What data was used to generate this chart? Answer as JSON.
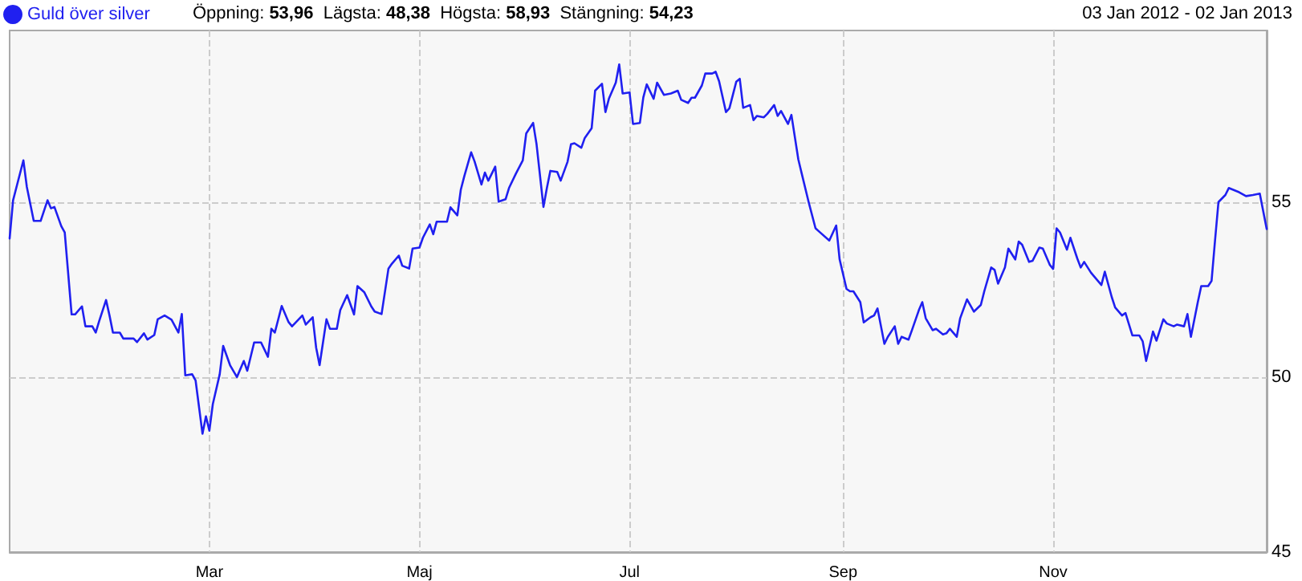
{
  "chart_data": {
    "type": "line",
    "legend": "top left",
    "grid": true,
    "marker": "none",
    "line_style": "solid",
    "annotations": [
      "Öppning: 53,96",
      "Lägsta: 48,38",
      "Högsta: 58,93",
      "Stängning: 54,23",
      "03 Jan 2012 - 02 Jan 2013"
    ],
    "x": [
      "2012-01-03",
      "2012-01-04",
      "2012-01-05",
      "2012-01-07",
      "2012-01-08",
      "2012-01-10",
      "2012-01-12",
      "2012-01-14",
      "2012-01-15",
      "2012-01-16",
      "2012-01-18",
      "2012-01-19",
      "2012-01-21",
      "2012-01-22",
      "2012-01-24",
      "2012-01-25",
      "2012-01-27",
      "2012-01-28",
      "2012-01-29",
      "2012-01-31",
      "2012-02-01",
      "2012-02-02",
      "2012-02-04",
      "2012-02-05",
      "2012-02-08",
      "2012-02-09",
      "2012-02-11",
      "2012-02-12",
      "2012-02-14",
      "2012-02-15",
      "2012-02-17",
      "2012-02-19",
      "2012-02-21",
      "2012-02-22",
      "2012-02-23",
      "2012-02-25",
      "2012-02-26",
      "2012-02-28",
      "2012-02-29",
      "2012-03-01",
      "2012-03-02",
      "2012-03-04",
      "2012-03-05",
      "2012-03-07",
      "2012-03-09",
      "2012-03-11",
      "2012-03-12",
      "2012-03-14",
      "2012-03-16",
      "2012-03-18",
      "2012-03-19",
      "2012-03-20",
      "2012-03-22",
      "2012-03-24",
      "2012-03-25",
      "2012-03-28",
      "2012-03-29",
      "2012-03-31",
      "2012-04-01",
      "2012-04-02",
      "2012-04-04",
      "2012-04-05",
      "2012-04-07",
      "2012-04-08",
      "2012-04-10",
      "2012-04-12",
      "2012-04-13",
      "2012-04-15",
      "2012-04-17",
      "2012-04-18",
      "2012-04-20",
      "2012-04-22",
      "2012-04-23",
      "2012-04-25",
      "2012-04-26",
      "2012-04-28",
      "2012-04-29",
      "2012-05-01",
      "2012-05-02",
      "2012-05-04",
      "2012-05-05",
      "2012-05-06",
      "2012-05-07",
      "2012-05-09",
      "2012-05-10",
      "2012-05-12",
      "2012-05-13",
      "2012-05-14",
      "2012-05-16",
      "2012-05-17",
      "2012-05-19",
      "2012-05-20",
      "2012-05-21",
      "2012-05-23",
      "2012-05-24",
      "2012-05-26",
      "2012-05-27",
      "2012-05-29",
      "2012-05-31",
      "2012-06-01",
      "2012-06-03",
      "2012-06-04",
      "2012-06-06",
      "2012-06-07",
      "2012-06-08",
      "2012-06-10",
      "2012-06-11",
      "2012-06-13",
      "2012-06-14",
      "2012-06-15",
      "2012-06-17",
      "2012-06-18",
      "2012-06-20",
      "2012-06-21",
      "2012-06-23",
      "2012-06-24",
      "2012-06-25",
      "2012-06-27",
      "2012-06-28",
      "2012-06-29",
      "2012-07-01",
      "2012-07-02",
      "2012-07-04",
      "2012-07-05",
      "2012-07-06",
      "2012-07-08",
      "2012-07-09",
      "2012-07-11",
      "2012-07-13",
      "2012-07-15",
      "2012-07-16",
      "2012-07-18",
      "2012-07-19",
      "2012-07-20",
      "2012-07-22",
      "2012-07-23",
      "2012-07-25",
      "2012-07-26",
      "2012-07-27",
      "2012-07-29",
      "2012-07-30",
      "2012-08-01",
      "2012-08-02",
      "2012-08-03",
      "2012-08-05",
      "2012-08-06",
      "2012-08-07",
      "2012-08-09",
      "2012-08-10",
      "2012-08-12",
      "2012-08-13",
      "2012-08-14",
      "2012-08-16",
      "2012-08-17",
      "2012-08-19",
      "2012-08-20",
      "2012-08-22",
      "2012-08-24",
      "2012-08-25",
      "2012-08-28",
      "2012-08-30",
      "2012-08-31",
      "2012-09-02",
      "2012-09-03",
      "2012-09-04",
      "2012-09-06",
      "2012-09-07",
      "2012-09-09",
      "2012-09-10",
      "2012-09-11",
      "2012-09-13",
      "2012-09-14",
      "2012-09-16",
      "2012-09-17",
      "2012-09-18",
      "2012-09-20",
      "2012-09-21",
      "2012-09-23",
      "2012-09-24",
      "2012-09-25",
      "2012-09-27",
      "2012-09-28",
      "2012-09-30",
      "2012-10-01",
      "2012-10-02",
      "2012-10-04",
      "2012-10-05",
      "2012-10-07",
      "2012-10-09",
      "2012-10-11",
      "2012-10-12",
      "2012-10-14",
      "2012-10-15",
      "2012-10-16",
      "2012-10-18",
      "2012-10-19",
      "2012-10-21",
      "2012-10-22",
      "2012-10-23",
      "2012-10-25",
      "2012-10-26",
      "2012-10-28",
      "2012-10-29",
      "2012-10-31",
      "2012-11-01",
      "2012-11-02",
      "2012-11-03",
      "2012-11-05",
      "2012-11-06",
      "2012-11-08",
      "2012-11-09",
      "2012-11-10",
      "2012-11-12",
      "2012-11-15",
      "2012-11-16",
      "2012-11-18",
      "2012-11-19",
      "2012-11-21",
      "2012-11-22",
      "2012-11-24",
      "2012-11-26",
      "2012-11-27",
      "2012-11-28",
      "2012-11-30",
      "2012-12-01",
      "2012-12-03",
      "2012-12-04",
      "2012-12-06",
      "2012-12-07",
      "2012-12-09",
      "2012-12-10",
      "2012-12-11",
      "2012-12-13",
      "2012-12-14",
      "2012-12-16",
      "2012-12-17",
      "2012-12-18",
      "2012-12-19",
      "2012-12-21",
      "2012-12-22",
      "2012-12-25",
      "2012-12-27",
      "2012-12-29",
      "2012-12-31",
      "2013-01-02"
    ],
    "series": [
      {
        "name": "Guld över silver",
        "color": "#2020f0",
        "values": [
          53.96,
          55.05,
          55.43,
          56.19,
          55.43,
          54.46,
          54.46,
          55.05,
          54.82,
          54.86,
          54.31,
          54.13,
          51.79,
          51.79,
          52.02,
          51.45,
          51.45,
          51.27,
          51.6,
          52.2,
          51.76,
          51.27,
          51.27,
          51.1,
          51.1,
          51.0,
          51.25,
          51.07,
          51.2,
          51.65,
          51.76,
          51.64,
          51.27,
          51.8,
          50.05,
          50.08,
          49.9,
          48.38,
          48.88,
          48.47,
          49.23,
          50.08,
          50.89,
          50.34,
          50.0,
          50.46,
          50.18,
          50.99,
          50.99,
          50.58,
          51.38,
          51.27,
          52.03,
          51.57,
          51.45,
          51.76,
          51.5,
          51.71,
          50.84,
          50.34,
          51.65,
          51.38,
          51.38,
          51.91,
          52.34,
          51.79,
          52.6,
          52.42,
          52.02,
          51.87,
          51.8,
          53.1,
          53.24,
          53.47,
          53.18,
          53.1,
          53.67,
          53.7,
          53.98,
          54.36,
          54.08,
          54.44,
          54.44,
          54.44,
          54.85,
          54.62,
          55.35,
          55.73,
          56.42,
          56.16,
          55.5,
          55.84,
          55.61,
          56.01,
          55.01,
          55.08,
          55.4,
          55.81,
          56.19,
          56.96,
          57.26,
          56.65,
          54.86,
          55.4,
          55.89,
          55.86,
          55.61,
          56.15,
          56.65,
          56.68,
          56.55,
          56.83,
          57.11,
          58.18,
          58.38,
          57.57,
          57.95,
          58.41,
          58.93,
          58.1,
          58.13,
          57.23,
          57.26,
          57.99,
          58.36,
          57.95,
          58.41,
          58.06,
          58.1,
          58.18,
          57.92,
          57.83,
          57.98,
          57.98,
          58.33,
          58.67,
          58.67,
          58.72,
          58.45,
          57.57,
          57.68,
          58.44,
          58.52,
          57.69,
          57.77,
          57.34,
          57.46,
          57.42,
          57.52,
          57.77,
          57.46,
          57.6,
          57.23,
          57.49,
          56.22,
          55.81,
          55.0,
          54.25,
          54.16,
          53.9,
          54.33,
          53.36,
          52.52,
          52.45,
          52.45,
          52.14,
          51.56,
          51.71,
          51.76,
          51.96,
          50.95,
          51.15,
          51.45,
          50.95,
          51.15,
          51.07,
          51.34,
          51.91,
          52.14,
          51.68,
          51.34,
          51.38,
          51.22,
          51.25,
          51.38,
          51.15,
          51.68,
          52.22,
          51.87,
          52.06,
          52.45,
          53.13,
          53.06,
          52.67,
          53.13,
          53.67,
          53.36,
          53.87,
          53.78,
          53.29,
          53.32,
          53.7,
          53.67,
          53.21,
          53.09,
          54.25,
          54.13,
          53.64,
          53.98,
          53.39,
          53.13,
          53.29,
          52.98,
          52.63,
          53.01,
          52.29,
          51.99,
          51.76,
          51.83,
          51.19,
          51.19,
          51.02,
          50.46,
          51.3,
          51.04,
          51.65,
          51.53,
          51.45,
          51.5,
          51.45,
          51.8,
          51.15,
          52.14,
          52.6,
          52.6,
          52.75,
          53.9,
          55.0,
          55.2,
          55.4,
          55.28,
          55.17,
          55.2,
          55.24,
          54.23
        ]
      }
    ],
    "xlim": [
      "2012-01-03",
      "2013-01-02"
    ],
    "xticks": [
      {
        "value": "2012-03-01",
        "label": "Mar"
      },
      {
        "value": "2012-05-01",
        "label": "Maj"
      },
      {
        "value": "2012-07-01",
        "label": "Jul"
      },
      {
        "value": "2012-09-01",
        "label": "Sep"
      },
      {
        "value": "2012-11-01",
        "label": "Nov"
      }
    ],
    "ylim": [
      45,
      59.9
    ],
    "yticks": [
      45,
      50,
      55
    ]
  }
}
